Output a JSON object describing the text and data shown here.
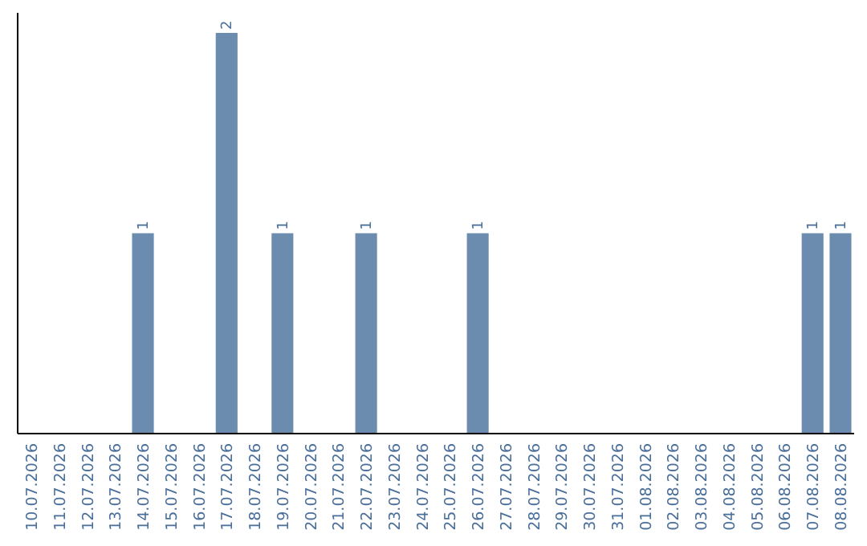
{
  "chart_data": {
    "type": "bar",
    "categories": [
      "10.07.2026",
      "11.07.2026",
      "12.07.2026",
      "13.07.2026",
      "14.07.2026",
      "15.07.2026",
      "16.07.2026",
      "17.07.2026",
      "18.07.2026",
      "19.07.2026",
      "20.07.2026",
      "21.07.2026",
      "22.07.2026",
      "23.07.2026",
      "24.07.2026",
      "25.07.2026",
      "26.07.2026",
      "27.07.2026",
      "28.07.2026",
      "29.07.2026",
      "30.07.2026",
      "31.07.2026",
      "01.08.2026",
      "02.08.2026",
      "03.08.2026",
      "04.08.2026",
      "05.08.2026",
      "06.08.2026",
      "07.08.2026",
      "08.08.2026"
    ],
    "values": [
      0,
      0,
      0,
      0,
      1,
      0,
      0,
      2,
      0,
      1,
      0,
      0,
      1,
      0,
      0,
      0,
      1,
      0,
      0,
      0,
      0,
      0,
      0,
      0,
      0,
      0,
      0,
      0,
      1,
      1
    ],
    "value_labels": [
      null,
      null,
      null,
      null,
      "1",
      null,
      null,
      "2",
      null,
      "1",
      null,
      null,
      "1",
      null,
      null,
      null,
      "1",
      null,
      null,
      null,
      null,
      null,
      null,
      null,
      null,
      null,
      null,
      null,
      "1",
      "1"
    ],
    "color": "#6b8cae",
    "tick_labels": "x"
  }
}
